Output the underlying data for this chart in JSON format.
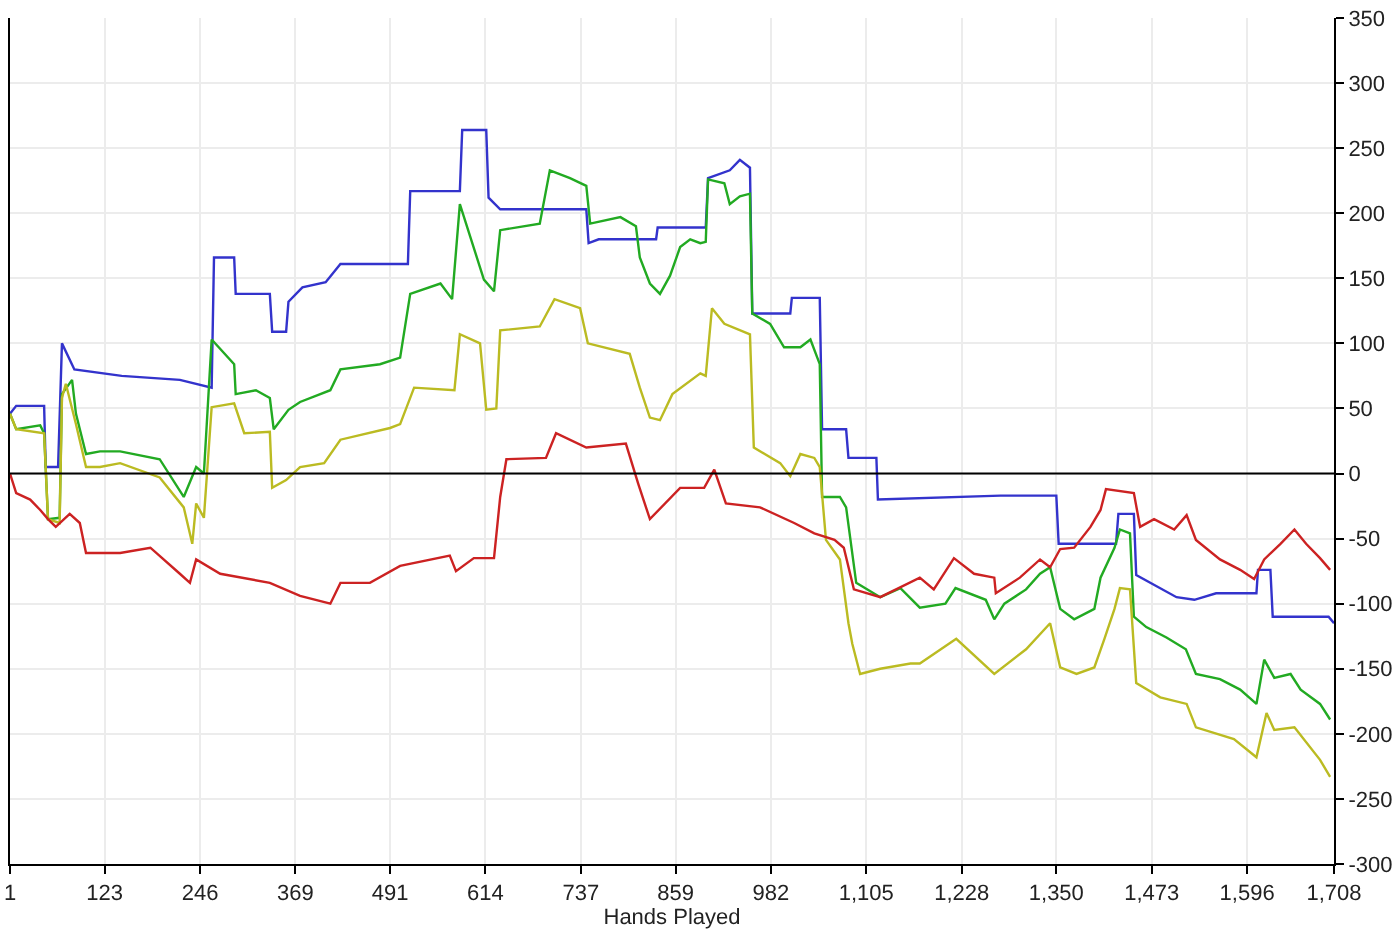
{
  "chart_data": {
    "type": "line",
    "xlabel": "Hands Played",
    "xlim": [
      1,
      1708
    ],
    "ylim": [
      -300,
      350
    ],
    "xticks": [
      1,
      123,
      246,
      369,
      491,
      614,
      737,
      859,
      982,
      {
        "value": 1105,
        "label": "1,105"
      },
      {
        "value": 1228,
        "label": "1,228"
      },
      {
        "value": 1350,
        "label": "1,350"
      },
      {
        "value": 1473,
        "label": "1,473"
      },
      {
        "value": 1596,
        "label": "1,596"
      },
      {
        "value": 1708,
        "label": "1,708"
      }
    ],
    "yticks": [
      -300,
      -250,
      -200,
      -150,
      -100,
      -50,
      0,
      50,
      100,
      150,
      200,
      250,
      300,
      350
    ],
    "grid": true,
    "ref_lines": [
      {
        "axis": "y",
        "value": 0,
        "color": "#000000"
      }
    ],
    "series": [
      {
        "color": "#3333cc",
        "x": [
          1,
          9,
          45,
          47,
          63,
          68,
          84,
          145,
          220,
          261,
          264,
          290,
          292,
          336,
          339,
          357,
          360,
          378,
          408,
          427,
          514,
          517,
          581,
          584,
          615,
          618,
          633,
          744,
          747,
          760,
          834,
          836,
          898,
          901,
          929,
          942,
          955,
          958,
          1007,
          1009,
          1045,
          1048,
          1079,
          1082,
          1118,
          1120,
          1278,
          1350,
          1353,
          1427,
          1430,
          1450,
          1453,
          1505,
          1528,
          1556,
          1608,
          1610,
          1626,
          1629,
          1701,
          1708
        ],
        "values": [
          46,
          52,
          52,
          5,
          5,
          100,
          80,
          75,
          72,
          66,
          166,
          166,
          138,
          138,
          109,
          109,
          132,
          143,
          147,
          161,
          161,
          217,
          217,
          264,
          264,
          212,
          203,
          203,
          177,
          180,
          180,
          189,
          189,
          227,
          233,
          241,
          235,
          123,
          123,
          135,
          135,
          34,
          34,
          12,
          12,
          -20,
          -17,
          -17,
          -54,
          -54,
          -31,
          -31,
          -78,
          -95,
          -97,
          -92,
          -92,
          -74,
          -74,
          -110,
          -110,
          -115
        ]
      },
      {
        "color": "#22aa22",
        "x": [
          1,
          9,
          40,
          45,
          50,
          65,
          68,
          81,
          86,
          99,
          117,
          143,
          194,
          225,
          241,
          251,
          261,
          290,
          292,
          318,
          336,
          341,
          360,
          375,
          414,
          427,
          478,
          504,
          517,
          556,
          571,
          581,
          612,
          625,
          633,
          684,
          697,
          723,
          744,
          749,
          788,
          808,
          813,
          826,
          839,
          852,
          865,
          878,
          891,
          898,
          901,
          922,
          929,
          942,
          955,
          958,
          981,
          999,
          1020,
          1033,
          1045,
          1048,
          1071,
          1079,
          1092,
          1123,
          1149,
          1174,
          1207,
          1220,
          1259,
          1270,
          1283,
          1311,
          1329,
          1342,
          1355,
          1373,
          1399,
          1407,
          1425,
          1432,
          1445,
          1450,
          1466,
          1492,
          1517,
          1530,
          1561,
          1587,
          1608,
          1618,
          1631,
          1652,
          1665,
          1690,
          1703
        ],
        "values": [
          46,
          34,
          37,
          31,
          -35,
          -34,
          61,
          72,
          46,
          15,
          17,
          17,
          11,
          -18,
          5,
          0,
          103,
          84,
          61,
          64,
          58,
          34,
          49,
          55,
          64,
          80,
          84,
          89,
          138,
          146,
          134,
          207,
          149,
          140,
          187,
          192,
          233,
          227,
          221,
          192,
          197,
          190,
          166,
          146,
          138,
          152,
          174,
          180,
          177,
          178,
          226,
          223,
          207,
          213,
          215,
          123,
          115,
          97,
          97,
          103,
          84,
          -18,
          -18,
          -26,
          -84,
          -95,
          -88,
          -103,
          -100,
          -88,
          -97,
          -112,
          -100,
          -89,
          -77,
          -72,
          -104,
          -112,
          -104,
          -80,
          -57,
          -43,
          -46,
          -110,
          -118,
          -126,
          -135,
          -154,
          -158,
          -166,
          -177,
          -143,
          -157,
          -154,
          -166,
          -177,
          -189
        ]
      },
      {
        "color": "#bbbb22",
        "x": [
          1,
          9,
          45,
          50,
          65,
          68,
          73,
          86,
          99,
          117,
          143,
          194,
          225,
          236,
          241,
          251,
          261,
          290,
          303,
          336,
          339,
          357,
          375,
          406,
          427,
          491,
          504,
          522,
          574,
          581,
          607,
          615,
          628,
          633,
          684,
          703,
          736,
          746,
          800,
          813,
          826,
          839,
          855,
          891,
          898,
          906,
          922,
          955,
          960,
          994,
          1007,
          1020,
          1038,
          1045,
          1053,
          1071,
          1082,
          1087,
          1097,
          1123,
          1162,
          1174,
          1221,
          1270,
          1311,
          1342,
          1355,
          1376,
          1399,
          1412,
          1425,
          1432,
          1445,
          1453,
          1484,
          1518,
          1530,
          1579,
          1608,
          1621,
          1631,
          1657,
          1690,
          1703
        ],
        "values": [
          46,
          34,
          31,
          -35,
          -38,
          58,
          69,
          38,
          5,
          5,
          8,
          -3,
          -26,
          -54,
          -23,
          -34,
          51,
          54,
          31,
          32,
          -11,
          -5,
          5,
          8,
          26,
          35,
          38,
          66,
          64,
          107,
          100,
          49,
          50,
          110,
          113,
          134,
          127,
          100,
          92,
          66,
          43,
          41,
          61,
          77,
          75,
          127,
          115,
          107,
          20,
          8,
          -2,
          15,
          12,
          5,
          -51,
          -66,
          -115,
          -131,
          -154,
          -150,
          -146,
          -146,
          -127,
          -154,
          -135,
          -115,
          -149,
          -154,
          -149,
          -127,
          -104,
          -88,
          -89,
          -161,
          -172,
          -177,
          -195,
          -204,
          -218,
          -184,
          -197,
          -195,
          -220,
          -233
        ]
      },
      {
        "color": "#cc2222",
        "x": [
          1,
          9,
          27,
          40,
          50,
          60,
          78,
          91,
          99,
          143,
          182,
          220,
          233,
          241,
          272,
          336,
          375,
          414,
          427,
          465,
          504,
          568,
          576,
          599,
          625,
          633,
          641,
          692,
          705,
          744,
          795,
          811,
          826,
          865,
          896,
          909,
          924,
          968,
          1012,
          1038,
          1064,
          1076,
          1089,
          1123,
          1174,
          1192,
          1218,
          1244,
          1270,
          1272,
          1303,
          1329,
          1342,
          1355,
          1373,
          1394,
          1407,
          1414,
          1450,
          1458,
          1476,
          1502,
          1518,
          1530,
          1561,
          1587,
          1605,
          1618,
          1639,
          1657,
          1672,
          1690,
          1703
        ],
        "values": [
          0,
          -15,
          -20,
          -28,
          -35,
          -41,
          -31,
          -38,
          -61,
          -61,
          -57,
          -77,
          -84,
          -66,
          -77,
          -84,
          -94,
          -100,
          -84,
          -84,
          -71,
          -63,
          -75,
          -65,
          -65,
          -18,
          11,
          12,
          31,
          20,
          23,
          -8,
          -35,
          -11,
          -11,
          3,
          -23,
          -26,
          -38,
          -46,
          -51,
          -57,
          -89,
          -95,
          -80,
          -89,
          -65,
          -77,
          -80,
          -92,
          -80,
          -66,
          -72,
          -58,
          -57,
          -41,
          -28,
          -12,
          -15,
          -41,
          -35,
          -43,
          -32,
          -51,
          -66,
          -74,
          -81,
          -66,
          -54,
          -43,
          -54,
          -65,
          -74
        ]
      }
    ]
  }
}
